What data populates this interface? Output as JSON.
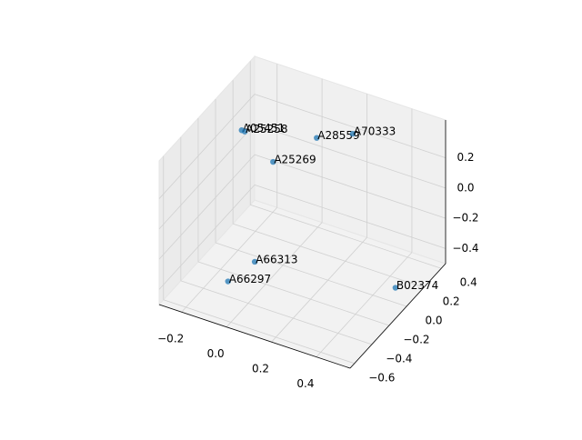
{
  "chart_data": {
    "type": "scatter3d",
    "labels": [
      "A05451",
      "A25258",
      "A28559",
      "A70333",
      "A25269",
      "A66313",
      "A66297",
      "B02374"
    ],
    "x": [
      -0.18,
      -0.17,
      0.1,
      0.21,
      -0.04,
      -0.06,
      -0.09,
      0.52
    ],
    "y": [
      -0.01,
      0.0,
      0.13,
      0.26,
      -0.01,
      -0.17,
      -0.4,
      -0.05
    ],
    "z": [
      0.31,
      0.3,
      0.31,
      0.31,
      0.17,
      -0.4,
      -0.4,
      -0.36
    ],
    "color": "#1f77b4",
    "xlim": [
      -0.3,
      0.55
    ],
    "ylim": [
      -0.65,
      0.45
    ],
    "zlim": [
      -0.5,
      0.45
    ],
    "xticks": [
      {
        "value": -0.2,
        "label": "−0.2"
      },
      {
        "value": 0,
        "label": "0.0"
      },
      0.2,
      0.4
    ],
    "yticks": [
      {
        "value": -0.6,
        "label": "−0.6"
      },
      {
        "value": -0.4,
        "label": "−0.4"
      },
      {
        "value": -0.2,
        "label": "−0.2"
      },
      {
        "value": 0,
        "label": "0.0"
      },
      0.2,
      0.4
    ],
    "zticks": [
      {
        "value": -0.4,
        "label": "−0.4"
      },
      {
        "value": -0.2,
        "label": "−0.2"
      },
      {
        "value": 0,
        "label": "0.0"
      },
      0.2
    ],
    "grid": true
  }
}
